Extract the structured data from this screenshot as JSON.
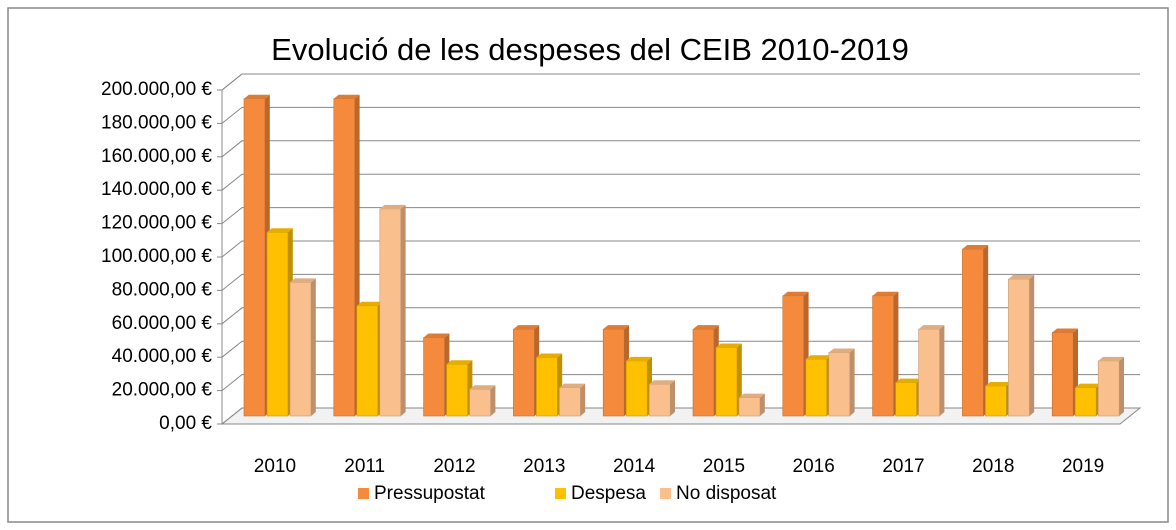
{
  "chart_data": {
    "type": "bar3d",
    "title": "Evolució de les despeses del CEIB 2010-2019",
    "categories": [
      "2010",
      "2011",
      "2012",
      "2013",
      "2014",
      "2015",
      "2016",
      "2017",
      "2018",
      "2019"
    ],
    "series": [
      {
        "name": "Pressupostat",
        "color": "#f58a3c",
        "values": [
          190000,
          190000,
          47000,
          52000,
          52000,
          52000,
          72000,
          72000,
          100000,
          50000
        ]
      },
      {
        "name": "Despesa",
        "color": "#ffc000",
        "values": [
          110000,
          66000,
          31000,
          35000,
          33000,
          41000,
          34000,
          20000,
          18000,
          17000
        ]
      },
      {
        "name": "No disposat",
        "color": "#f9c08e",
        "values": [
          80000,
          124000,
          16000,
          17000,
          19000,
          11000,
          38000,
          52000,
          82000,
          33000
        ]
      }
    ],
    "ylim": [
      0,
      200000
    ],
    "yticks": [
      {
        "value": 0,
        "label": "0,00 €"
      },
      {
        "value": 20000,
        "label": "20.000,00 €"
      },
      {
        "value": 40000,
        "label": "40.000,00 €"
      },
      {
        "value": 60000,
        "label": "60.000,00 €"
      },
      {
        "value": 80000,
        "label": "80.000,00 €"
      },
      {
        "value": 100000,
        "label": "100.000,00 €"
      },
      {
        "value": 120000,
        "label": "120.000,00 €"
      },
      {
        "value": 140000,
        "label": "140.000,00 €"
      },
      {
        "value": 160000,
        "label": "160.000,00 €"
      },
      {
        "value": 180000,
        "label": "180.000,00 €"
      },
      {
        "value": 200000,
        "label": "200.000,00 €"
      }
    ],
    "grid": true,
    "legend": "bottom"
  }
}
